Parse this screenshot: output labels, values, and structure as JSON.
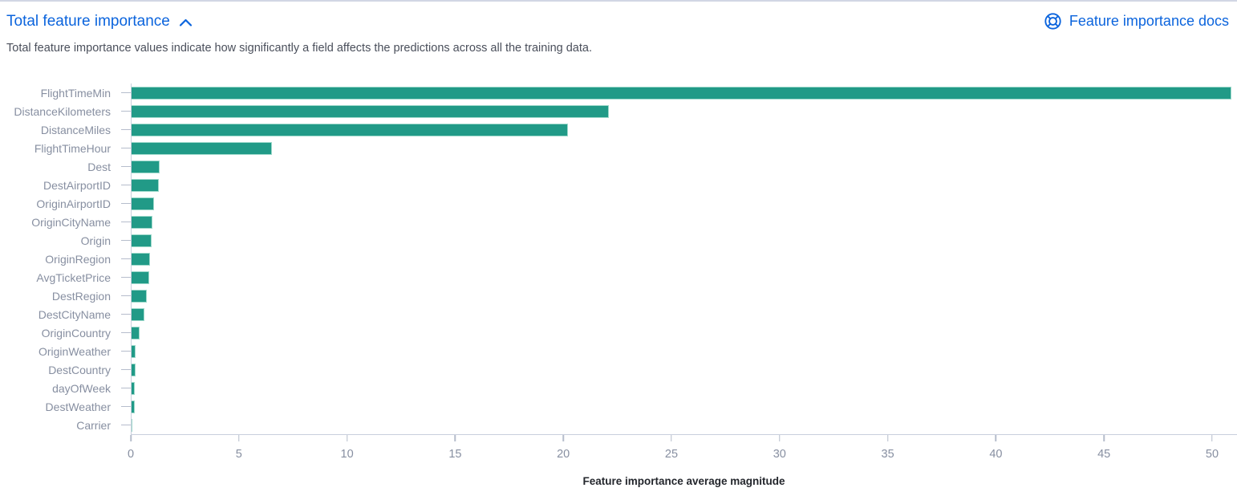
{
  "header": {
    "title": "Total feature importance",
    "docs_link_label": "Feature importance docs"
  },
  "description": "Total feature importance values indicate how significantly a field affects the predictions across all the training data.",
  "colors": {
    "bar": "#219a87",
    "link_blue": "#0b64dd",
    "axis_text": "#878fa1",
    "axis_line": "#c9cfdd"
  },
  "chart_data": {
    "type": "bar",
    "orientation": "horizontal",
    "title": "",
    "xlabel": "Feature importance average magnitude",
    "ylabel": "",
    "categories": [
      "FlightTimeMin",
      "DistanceKilometers",
      "DistanceMiles",
      "FlightTimeHour",
      "Dest",
      "DestAirportID",
      "OriginAirportID",
      "OriginCityName",
      "Origin",
      "OriginRegion",
      "AvgTicketPrice",
      "DestRegion",
      "DestCityName",
      "OriginCountry",
      "OriginWeather",
      "DestCountry",
      "dayOfWeek",
      "DestWeather",
      "Carrier"
    ],
    "values": [
      50.9,
      22.1,
      20.2,
      6.5,
      1.3,
      1.25,
      1.05,
      0.95,
      0.92,
      0.85,
      0.8,
      0.7,
      0.58,
      0.38,
      0.19,
      0.17,
      0.16,
      0.14,
      0.05
    ],
    "x_ticks": [
      0,
      5,
      10,
      15,
      20,
      25,
      30,
      35,
      40,
      45,
      50
    ],
    "xlim": [
      0,
      51.15
    ],
    "grid": false,
    "legend": "none",
    "bar_color": "#219a87"
  }
}
